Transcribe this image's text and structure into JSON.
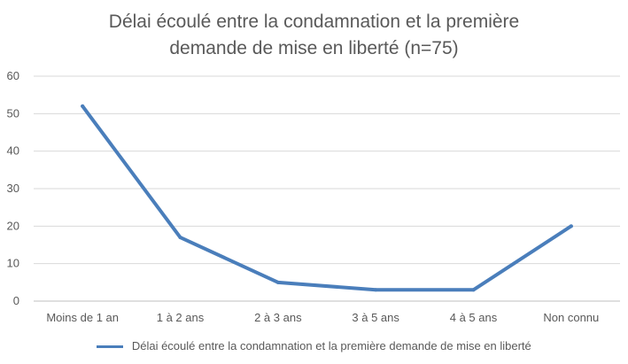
{
  "chart_data": {
    "type": "line",
    "title_lines": [
      "Délai écoulé entre la condamnation et la première",
      "demande de mise en liberté (n=75)"
    ],
    "categories": [
      "Moins de 1 an",
      "1 à 2 ans",
      "2 à 3 ans",
      "3 à 5 ans",
      "4 à 5 ans",
      "Non connu"
    ],
    "series": [
      {
        "name": "Délai écoulé entre la condamnation et la première demande de mise en liberté",
        "values": [
          52,
          17,
          5,
          3,
          3,
          20
        ],
        "color": "#4a7ebb"
      }
    ],
    "ylim": [
      0,
      60
    ],
    "yticks": [
      "0",
      "10",
      "20",
      "30",
      "40",
      "50",
      "60"
    ],
    "grid": true,
    "legend": "bottom"
  }
}
